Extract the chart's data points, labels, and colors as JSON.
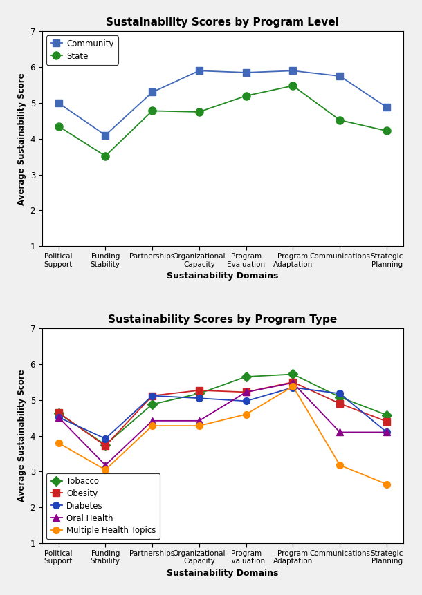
{
  "domains": [
    "Political\nSupport",
    "Funding\nStability",
    "Partnerships",
    "Organizational\nCapacity",
    "Program\nEvaluation",
    "Program\nAdaptation",
    "Communications",
    "Strategic\nPlanning"
  ],
  "graph1": {
    "title": "Sustainability Scores by Program Level",
    "community": [
      5.0,
      4.1,
      5.3,
      5.9,
      5.85,
      5.9,
      5.75,
      4.88
    ],
    "state": [
      4.35,
      3.52,
      4.78,
      4.75,
      5.2,
      5.48,
      4.52,
      4.22
    ],
    "community_color": "#4169B8",
    "state_color": "#228B22",
    "community_marker": "s",
    "state_marker": "o",
    "community_label": "Community",
    "state_label": "State"
  },
  "graph2": {
    "title": "Sustainability Scores by Program Type",
    "tobacco": [
      4.63,
      3.75,
      4.88,
      5.18,
      5.65,
      5.72,
      5.08,
      4.58
    ],
    "obesity": [
      4.65,
      3.72,
      5.12,
      5.27,
      5.22,
      5.5,
      4.9,
      4.4
    ],
    "diabetes": [
      4.52,
      3.92,
      5.12,
      5.05,
      4.97,
      5.35,
      5.18,
      4.1
    ],
    "oral_health": [
      4.52,
      3.18,
      4.42,
      4.42,
      5.22,
      5.48,
      4.1,
      4.1
    ],
    "multi_health": [
      3.8,
      3.05,
      4.28,
      4.28,
      4.6,
      5.38,
      3.18,
      2.65
    ],
    "tobacco_color": "#228B22",
    "obesity_color": "#CC2222",
    "diabetes_color": "#2244BB",
    "oral_health_color": "#8B008B",
    "multi_health_color": "#FF8C00",
    "tobacco_marker": "D",
    "obesity_marker": "s",
    "diabetes_marker": "o",
    "oral_health_marker": "^",
    "multi_health_marker": "o",
    "tobacco_label": "Tobacco",
    "obesity_label": "Obesity",
    "diabetes_label": "Diabetes",
    "oral_health_label": "Oral Health",
    "multi_health_label": "Multiple Health Topics"
  },
  "ylabel": "Average Sustainability Score",
  "xlabel": "Sustainability Domains",
  "ylim": [
    1,
    7
  ],
  "yticks": [
    1,
    2,
    3,
    4,
    5,
    6,
    7
  ],
  "bg_color": "#f0f0f0",
  "plot_bg": "#ffffff"
}
